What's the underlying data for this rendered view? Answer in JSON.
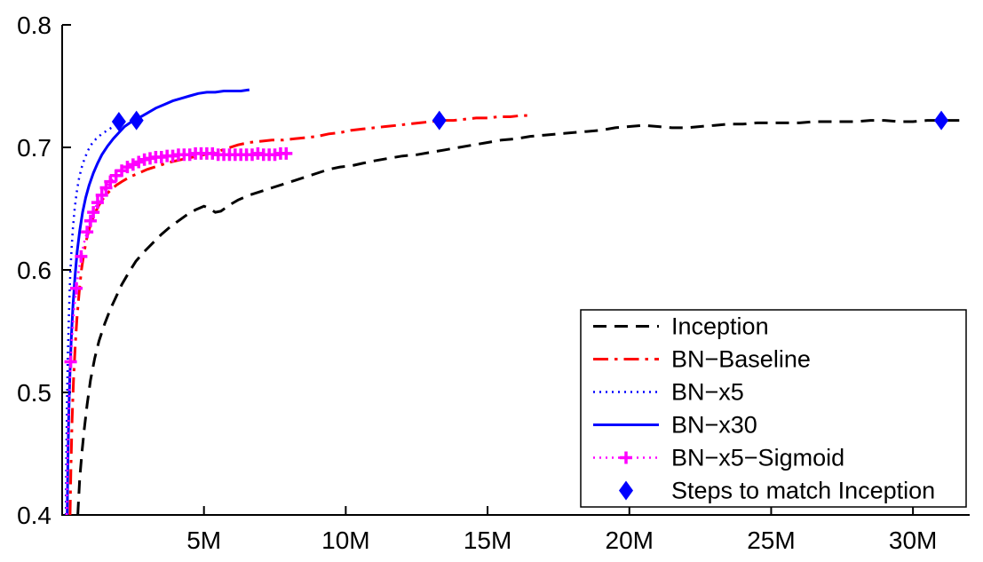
{
  "figure": {
    "background": "#ffffff",
    "axis_color": "#000000"
  },
  "chart_data": {
    "type": "line",
    "title": "",
    "xlabel": "",
    "ylabel": "",
    "grid": false,
    "legend_position": "lower right",
    "xlim": [
      0,
      32
    ],
    "ylim": [
      0.4,
      0.8
    ],
    "xticks": [
      {
        "value": 5,
        "label": "5M"
      },
      {
        "value": 10,
        "label": "10M"
      },
      {
        "value": 15,
        "label": "15M"
      },
      {
        "value": 20,
        "label": "20M"
      },
      {
        "value": 25,
        "label": "25M"
      },
      {
        "value": 30,
        "label": "30M"
      }
    ],
    "yticks": [
      {
        "value": 0.4,
        "label": "0.4"
      },
      {
        "value": 0.5,
        "label": "0.5"
      },
      {
        "value": 0.6,
        "label": "0.6"
      },
      {
        "value": 0.7,
        "label": "0.7"
      },
      {
        "value": 0.8,
        "label": "0.8"
      }
    ],
    "series": [
      {
        "id": "inception",
        "name": "Inception",
        "type": "line",
        "color": "#000000",
        "style": "dashed",
        "width": 3,
        "points": [
          [
            0.55,
            0.4
          ],
          [
            0.62,
            0.43
          ],
          [
            0.7,
            0.452
          ],
          [
            0.78,
            0.47
          ],
          [
            0.88,
            0.49
          ],
          [
            1.0,
            0.51
          ],
          [
            1.15,
            0.528
          ],
          [
            1.3,
            0.542
          ],
          [
            1.5,
            0.556
          ],
          [
            1.7,
            0.568
          ],
          [
            1.9,
            0.578
          ],
          [
            2.1,
            0.588
          ],
          [
            2.35,
            0.598
          ],
          [
            2.6,
            0.607
          ],
          [
            2.9,
            0.615
          ],
          [
            3.2,
            0.622
          ],
          [
            3.5,
            0.629
          ],
          [
            3.8,
            0.635
          ],
          [
            4.1,
            0.64
          ],
          [
            4.4,
            0.645
          ],
          [
            4.7,
            0.649
          ],
          [
            5.0,
            0.652
          ],
          [
            5.2,
            0.65
          ],
          [
            5.4,
            0.647
          ],
          [
            5.6,
            0.648
          ],
          [
            5.9,
            0.653
          ],
          [
            6.2,
            0.657
          ],
          [
            6.6,
            0.661
          ],
          [
            7.0,
            0.664
          ],
          [
            7.4,
            0.667
          ],
          [
            7.8,
            0.67
          ],
          [
            8.2,
            0.673
          ],
          [
            8.6,
            0.676
          ],
          [
            9.0,
            0.679
          ],
          [
            9.4,
            0.682
          ],
          [
            9.8,
            0.684
          ],
          [
            10.2,
            0.685
          ],
          [
            10.6,
            0.687
          ],
          [
            11.0,
            0.689
          ],
          [
            11.5,
            0.691
          ],
          [
            12.0,
            0.693
          ],
          [
            12.5,
            0.694
          ],
          [
            13.0,
            0.696
          ],
          [
            13.5,
            0.698
          ],
          [
            14.0,
            0.7
          ],
          [
            14.5,
            0.702
          ],
          [
            15.0,
            0.704
          ],
          [
            15.5,
            0.706
          ],
          [
            16.0,
            0.707
          ],
          [
            16.5,
            0.709
          ],
          [
            17.0,
            0.71
          ],
          [
            17.5,
            0.711
          ],
          [
            18.0,
            0.712
          ],
          [
            18.5,
            0.713
          ],
          [
            19.0,
            0.714
          ],
          [
            19.5,
            0.716
          ],
          [
            20.0,
            0.717
          ],
          [
            20.5,
            0.718
          ],
          [
            21.0,
            0.717
          ],
          [
            21.5,
            0.716
          ],
          [
            22.0,
            0.716
          ],
          [
            22.5,
            0.717
          ],
          [
            23.0,
            0.718
          ],
          [
            23.5,
            0.719
          ],
          [
            24.0,
            0.719
          ],
          [
            24.5,
            0.72
          ],
          [
            25.0,
            0.72
          ],
          [
            25.5,
            0.72
          ],
          [
            26.0,
            0.72
          ],
          [
            26.5,
            0.721
          ],
          [
            27.0,
            0.721
          ],
          [
            27.5,
            0.721
          ],
          [
            28.0,
            0.721
          ],
          [
            28.5,
            0.722
          ],
          [
            29.0,
            0.722
          ],
          [
            29.5,
            0.721
          ],
          [
            30.0,
            0.721
          ],
          [
            30.5,
            0.722
          ],
          [
            31.0,
            0.722
          ],
          [
            31.8,
            0.722
          ]
        ]
      },
      {
        "id": "bn-baseline",
        "name": "BN−Baseline",
        "type": "line",
        "color": "#ff0000",
        "style": "dashdot",
        "width": 3,
        "points": [
          [
            0.28,
            0.4
          ],
          [
            0.31,
            0.44
          ],
          [
            0.35,
            0.478
          ],
          [
            0.4,
            0.51
          ],
          [
            0.46,
            0.538
          ],
          [
            0.52,
            0.56
          ],
          [
            0.6,
            0.582
          ],
          [
            0.68,
            0.6
          ],
          [
            0.77,
            0.614
          ],
          [
            0.87,
            0.626
          ],
          [
            1.0,
            0.637
          ],
          [
            1.15,
            0.646
          ],
          [
            1.3,
            0.653
          ],
          [
            1.5,
            0.66
          ],
          [
            1.7,
            0.665
          ],
          [
            1.9,
            0.669
          ],
          [
            2.1,
            0.672
          ],
          [
            2.4,
            0.676
          ],
          [
            2.7,
            0.679
          ],
          [
            3.0,
            0.682
          ],
          [
            3.4,
            0.685
          ],
          [
            3.8,
            0.688
          ],
          [
            4.2,
            0.69
          ],
          [
            4.6,
            0.692
          ],
          [
            5.0,
            0.694
          ],
          [
            5.4,
            0.696
          ],
          [
            5.8,
            0.699
          ],
          [
            6.2,
            0.702
          ],
          [
            6.6,
            0.704
          ],
          [
            7.0,
            0.705
          ],
          [
            7.4,
            0.706
          ],
          [
            7.8,
            0.706
          ],
          [
            8.2,
            0.707
          ],
          [
            8.6,
            0.708
          ],
          [
            9.0,
            0.709
          ],
          [
            9.4,
            0.711
          ],
          [
            9.8,
            0.712
          ],
          [
            10.2,
            0.714
          ],
          [
            10.6,
            0.715
          ],
          [
            11.0,
            0.716
          ],
          [
            11.4,
            0.717
          ],
          [
            11.8,
            0.718
          ],
          [
            12.2,
            0.719
          ],
          [
            12.6,
            0.72
          ],
          [
            13.0,
            0.721
          ],
          [
            13.4,
            0.722
          ],
          [
            13.8,
            0.722
          ],
          [
            14.2,
            0.723
          ],
          [
            14.6,
            0.724
          ],
          [
            15.0,
            0.724
          ],
          [
            15.4,
            0.725
          ],
          [
            15.8,
            0.725
          ],
          [
            16.2,
            0.726
          ],
          [
            16.5,
            0.726
          ]
        ]
      },
      {
        "id": "bn-x5",
        "name": "BN−x5",
        "type": "line",
        "color": "#0000ff",
        "style": "dotted",
        "width": 2.5,
        "points": [
          [
            0.13,
            0.4
          ],
          [
            0.15,
            0.45
          ],
          [
            0.17,
            0.49
          ],
          [
            0.2,
            0.53
          ],
          [
            0.24,
            0.565
          ],
          [
            0.28,
            0.592
          ],
          [
            0.33,
            0.616
          ],
          [
            0.38,
            0.634
          ],
          [
            0.44,
            0.65
          ],
          [
            0.51,
            0.663
          ],
          [
            0.59,
            0.674
          ],
          [
            0.68,
            0.683
          ],
          [
            0.78,
            0.69
          ],
          [
            0.9,
            0.697
          ],
          [
            1.05,
            0.703
          ],
          [
            1.2,
            0.707
          ],
          [
            1.4,
            0.711
          ],
          [
            1.6,
            0.714
          ],
          [
            1.8,
            0.717
          ],
          [
            2.0,
            0.719
          ],
          [
            2.1,
            0.72
          ]
        ]
      },
      {
        "id": "bn-x30",
        "name": "BN−x30",
        "type": "line",
        "color": "#0000ff",
        "style": "solid",
        "width": 3,
        "points": [
          [
            0.18,
            0.4
          ],
          [
            0.2,
            0.44
          ],
          [
            0.23,
            0.478
          ],
          [
            0.27,
            0.512
          ],
          [
            0.32,
            0.543
          ],
          [
            0.38,
            0.57
          ],
          [
            0.45,
            0.594
          ],
          [
            0.53,
            0.615
          ],
          [
            0.62,
            0.632
          ],
          [
            0.72,
            0.647
          ],
          [
            0.83,
            0.659
          ],
          [
            0.95,
            0.669
          ],
          [
            1.1,
            0.679
          ],
          [
            1.25,
            0.687
          ],
          [
            1.4,
            0.694
          ],
          [
            1.6,
            0.701
          ],
          [
            1.8,
            0.707
          ],
          [
            2.0,
            0.712
          ],
          [
            2.2,
            0.717
          ],
          [
            2.45,
            0.721
          ],
          [
            2.7,
            0.724
          ],
          [
            3.0,
            0.728
          ],
          [
            3.3,
            0.732
          ],
          [
            3.6,
            0.735
          ],
          [
            3.9,
            0.738
          ],
          [
            4.2,
            0.74
          ],
          [
            4.5,
            0.742
          ],
          [
            4.8,
            0.744
          ],
          [
            5.1,
            0.745
          ],
          [
            5.4,
            0.745
          ],
          [
            5.7,
            0.746
          ],
          [
            6.0,
            0.746
          ],
          [
            6.3,
            0.746
          ],
          [
            6.6,
            0.747
          ]
        ]
      },
      {
        "id": "bn-x5-sigmoid",
        "name": "BN−x5−Sigmoid",
        "type": "line",
        "color": "#ff00ff",
        "style": "dotted",
        "width": 2.5,
        "marker": "plus",
        "points": [
          [
            0.16,
            0.4
          ],
          [
            0.18,
            0.435
          ],
          [
            0.21,
            0.468
          ],
          [
            0.25,
            0.498
          ],
          [
            0.3,
            0.525
          ],
          [
            0.36,
            0.549
          ],
          [
            0.43,
            0.57
          ],
          [
            0.5,
            0.585
          ],
          [
            0.58,
            0.599
          ],
          [
            0.67,
            0.611
          ],
          [
            0.77,
            0.622
          ],
          [
            0.88,
            0.631
          ],
          [
            1.0,
            0.64
          ],
          [
            1.1,
            0.647
          ],
          [
            1.25,
            0.655
          ],
          [
            1.4,
            0.661
          ],
          [
            1.55,
            0.667
          ],
          [
            1.7,
            0.672
          ],
          [
            1.9,
            0.677
          ],
          [
            2.1,
            0.681
          ],
          [
            2.3,
            0.684
          ],
          [
            2.5,
            0.686
          ],
          [
            2.7,
            0.688
          ],
          [
            2.9,
            0.69
          ],
          [
            3.1,
            0.691
          ],
          [
            3.3,
            0.692
          ],
          [
            3.5,
            0.692
          ],
          [
            3.7,
            0.693
          ],
          [
            3.9,
            0.693
          ],
          [
            4.1,
            0.694
          ],
          [
            4.3,
            0.694
          ],
          [
            4.5,
            0.694
          ],
          [
            4.7,
            0.695
          ],
          [
            4.9,
            0.695
          ],
          [
            5.1,
            0.695
          ],
          [
            5.3,
            0.695
          ],
          [
            5.5,
            0.694
          ],
          [
            5.7,
            0.694
          ],
          [
            5.9,
            0.694
          ],
          [
            6.1,
            0.694
          ],
          [
            6.3,
            0.694
          ],
          [
            6.5,
            0.694
          ],
          [
            6.7,
            0.694
          ],
          [
            6.9,
            0.695
          ],
          [
            7.1,
            0.694
          ],
          [
            7.3,
            0.694
          ],
          [
            7.5,
            0.694
          ],
          [
            7.7,
            0.695
          ],
          [
            7.9,
            0.695
          ]
        ],
        "marker_points": [
          [
            0.3,
            0.525
          ],
          [
            0.5,
            0.585
          ],
          [
            0.67,
            0.611
          ],
          [
            0.88,
            0.631
          ],
          [
            1.0,
            0.64
          ],
          [
            1.1,
            0.647
          ],
          [
            1.25,
            0.655
          ],
          [
            1.4,
            0.661
          ],
          [
            1.55,
            0.667
          ],
          [
            1.7,
            0.672
          ],
          [
            1.9,
            0.677
          ],
          [
            2.1,
            0.681
          ],
          [
            2.3,
            0.684
          ],
          [
            2.5,
            0.686
          ],
          [
            2.7,
            0.688
          ],
          [
            2.9,
            0.69
          ],
          [
            3.1,
            0.691
          ],
          [
            3.3,
            0.692
          ],
          [
            3.5,
            0.692
          ],
          [
            3.7,
            0.693
          ],
          [
            3.9,
            0.693
          ],
          [
            4.1,
            0.694
          ],
          [
            4.3,
            0.694
          ],
          [
            4.5,
            0.694
          ],
          [
            4.7,
            0.695
          ],
          [
            4.9,
            0.695
          ],
          [
            5.1,
            0.695
          ],
          [
            5.3,
            0.695
          ],
          [
            5.5,
            0.694
          ],
          [
            5.7,
            0.694
          ],
          [
            5.9,
            0.694
          ],
          [
            6.1,
            0.694
          ],
          [
            6.3,
            0.694
          ],
          [
            6.5,
            0.694
          ],
          [
            6.7,
            0.694
          ],
          [
            6.9,
            0.695
          ],
          [
            7.1,
            0.694
          ],
          [
            7.3,
            0.694
          ],
          [
            7.5,
            0.694
          ],
          [
            7.7,
            0.695
          ],
          [
            7.9,
            0.695
          ]
        ]
      },
      {
        "id": "steps-to-match-inception",
        "name": "Steps to match Inception",
        "type": "scatter",
        "color": "#0000ff",
        "marker": "diamond",
        "points": [
          [
            2.0,
            0.721
          ],
          [
            2.62,
            0.722
          ],
          [
            13.3,
            0.722
          ],
          [
            31.0,
            0.722
          ]
        ]
      }
    ]
  }
}
